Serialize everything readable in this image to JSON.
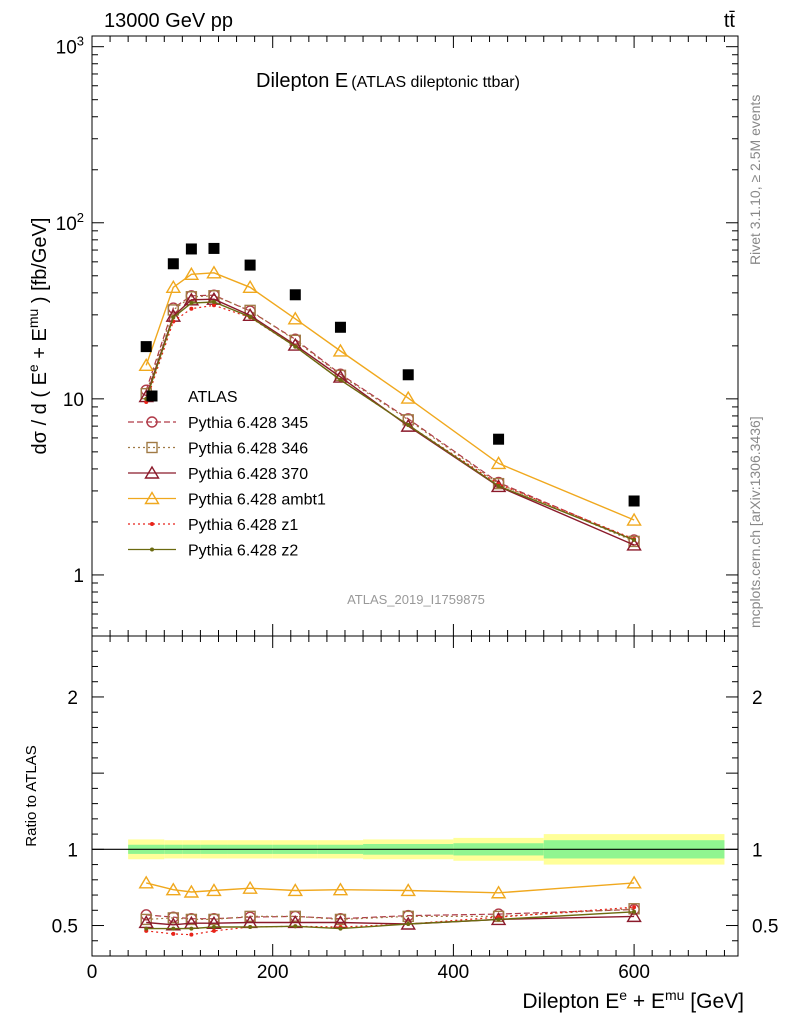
{
  "header": {
    "energy_label": "13000 GeV pp",
    "process_label": "tt̄"
  },
  "panel": {
    "title_main": "Dilepton E",
    "title_sub": "(ATLAS dileptonic ttbar)",
    "analysis_id": "ATLAS_2019_I1759875"
  },
  "side_text": {
    "rivet": "Rivet 3.1.10, ≥ 2.5M events",
    "source": "mcplots.cern.ch [arXiv:1306.3436]"
  },
  "colors": {
    "data": "#000000",
    "p345": "#b03a48",
    "p346": "#a07a45",
    "p370": "#8b1a2b",
    "ambt1": "#f0a81e",
    "z1": "#e8231a",
    "z2": "#6b6a10",
    "band_inner": "#90f590",
    "band_outer": "#ffff99"
  },
  "chart_data": [
    {
      "type": "scatter",
      "panel": "main",
      "ylabel": "dσ / d ( E<sup>e</sup> + E<sup>mu</sup> ) [fb/GeV]",
      "yscale": "log",
      "ylim": [
        0.45,
        1150
      ],
      "xlim": [
        0,
        715
      ],
      "ytick_labels": [
        "1",
        "10",
        "10²",
        "10³"
      ],
      "data_series": {
        "name": "ATLAS",
        "x": [
          60,
          90,
          110,
          135,
          175,
          225,
          275,
          350,
          450,
          600
        ],
        "y": [
          19.8,
          58.5,
          71.0,
          71.5,
          57.5,
          39.0,
          25.5,
          13.7,
          5.9,
          2.63
        ]
      },
      "series": [
        {
          "name": "Pythia 6.428 345",
          "key": "p345",
          "style": "dashed",
          "marker": "circle",
          "x": [
            60,
            90,
            110,
            135,
            175,
            225,
            275,
            350,
            450,
            600
          ],
          "y": [
            11.2,
            32.8,
            38.5,
            38.8,
            31.5,
            21.8,
            13.8,
            7.7,
            3.35,
            1.58
          ]
        },
        {
          "name": "Pythia 6.428 346",
          "key": "p346",
          "style": "dotted",
          "marker": "square",
          "x": [
            60,
            90,
            110,
            135,
            175,
            225,
            275,
            350,
            450,
            600
          ],
          "y": [
            10.7,
            32.0,
            38.0,
            38.5,
            31.8,
            21.5,
            13.6,
            7.6,
            3.3,
            1.55
          ]
        },
        {
          "name": "Pythia 6.428 370",
          "key": "p370",
          "style": "solid",
          "marker": "triangle",
          "x": [
            60,
            90,
            110,
            135,
            175,
            225,
            275,
            350,
            450,
            600
          ],
          "y": [
            10.3,
            29.5,
            36.5,
            36.8,
            29.8,
            20.2,
            13.3,
            7.0,
            3.18,
            1.48
          ]
        },
        {
          "name": "Pythia 6.428 ambt1",
          "key": "ambt1",
          "style": "solid",
          "marker": "triangle",
          "x": [
            60,
            90,
            110,
            135,
            175,
            225,
            275,
            350,
            450,
            600
          ],
          "y": [
            15.5,
            43.0,
            51.0,
            52.0,
            43.0,
            28.5,
            18.7,
            10.1,
            4.3,
            2.05
          ]
        },
        {
          "name": "Pythia 6.428 z1",
          "key": "z1",
          "style": "dotted",
          "marker": "dot",
          "x": [
            60,
            90,
            110,
            135,
            175,
            225,
            275,
            350,
            450,
            600
          ],
          "y": [
            9.6,
            27.5,
            32.5,
            34.0,
            29.0,
            19.8,
            12.8,
            7.1,
            3.28,
            1.6
          ]
        },
        {
          "name": "Pythia 6.428 z2",
          "key": "z2",
          "style": "solid",
          "marker": "dot",
          "x": [
            60,
            90,
            110,
            135,
            175,
            225,
            275,
            350,
            450,
            600
          ],
          "y": [
            10.0,
            29.0,
            35.0,
            35.5,
            29.2,
            19.8,
            12.8,
            7.1,
            3.2,
            1.58
          ]
        }
      ]
    },
    {
      "type": "scatter",
      "panel": "ratio",
      "ylabel": "Ratio to ATLAS",
      "xlabel": "Dilepton E<sup>e</sup> + E<sup>mu</sup> [GeV]",
      "ylim": [
        0.3,
        2.4
      ],
      "xlim": [
        0,
        715
      ],
      "ytick_labels": [
        "0.5",
        "1",
        "2"
      ],
      "xtick_labels": [
        "0",
        "200",
        "400",
        "600"
      ],
      "bands": [
        {
          "x0": 40,
          "x1": 80,
          "inner": 0.03,
          "outer": 0.065
        },
        {
          "x0": 80,
          "x1": 100,
          "inner": 0.03,
          "outer": 0.06
        },
        {
          "x0": 100,
          "x1": 120,
          "inner": 0.03,
          "outer": 0.06
        },
        {
          "x0": 120,
          "x1": 150,
          "inner": 0.03,
          "outer": 0.06
        },
        {
          "x0": 150,
          "x1": 200,
          "inner": 0.03,
          "outer": 0.06
        },
        {
          "x0": 200,
          "x1": 250,
          "inner": 0.03,
          "outer": 0.06
        },
        {
          "x0": 250,
          "x1": 300,
          "inner": 0.03,
          "outer": 0.06
        },
        {
          "x0": 300,
          "x1": 400,
          "inner": 0.035,
          "outer": 0.065
        },
        {
          "x0": 400,
          "x1": 500,
          "inner": 0.04,
          "outer": 0.075
        },
        {
          "x0": 500,
          "x1": 700,
          "inner": 0.06,
          "outer": 0.1
        }
      ],
      "series": [
        {
          "key": "p345",
          "style": "dashed",
          "marker": "circle",
          "x": [
            60,
            90,
            110,
            135,
            175,
            225,
            275,
            350,
            450,
            600
          ],
          "y": [
            0.57,
            0.555,
            0.545,
            0.545,
            0.555,
            0.56,
            0.545,
            0.565,
            0.575,
            0.605
          ]
        },
        {
          "key": "p346",
          "style": "dotted",
          "marker": "square",
          "x": [
            60,
            90,
            110,
            135,
            175,
            225,
            275,
            350,
            450,
            600
          ],
          "y": [
            0.54,
            0.55,
            0.54,
            0.54,
            0.56,
            0.56,
            0.54,
            0.56,
            0.56,
            0.61
          ]
        },
        {
          "key": "p370",
          "style": "solid",
          "marker": "triangle",
          "x": [
            60,
            90,
            110,
            135,
            175,
            225,
            275,
            350,
            450,
            600
          ],
          "y": [
            0.52,
            0.505,
            0.515,
            0.515,
            0.52,
            0.52,
            0.52,
            0.51,
            0.54,
            0.56
          ]
        },
        {
          "key": "ambt1",
          "style": "solid",
          "marker": "triangle",
          "x": [
            60,
            90,
            110,
            135,
            175,
            225,
            275,
            350,
            450,
            600
          ],
          "y": [
            0.78,
            0.735,
            0.72,
            0.73,
            0.745,
            0.73,
            0.735,
            0.73,
            0.715,
            0.78
          ]
        },
        {
          "key": "z1",
          "style": "dotted",
          "marker": "dot",
          "x": [
            60,
            90,
            110,
            135,
            175,
            225,
            275,
            350,
            450,
            600
          ],
          "y": [
            0.465,
            0.445,
            0.44,
            0.465,
            0.49,
            0.495,
            0.49,
            0.51,
            0.555,
            0.62
          ]
        },
        {
          "key": "z2",
          "style": "solid",
          "marker": "dot",
          "x": [
            60,
            90,
            110,
            135,
            175,
            225,
            275,
            350,
            450,
            600
          ],
          "y": [
            0.48,
            0.48,
            0.48,
            0.49,
            0.49,
            0.495,
            0.48,
            0.51,
            0.54,
            0.59
          ]
        }
      ]
    }
  ]
}
